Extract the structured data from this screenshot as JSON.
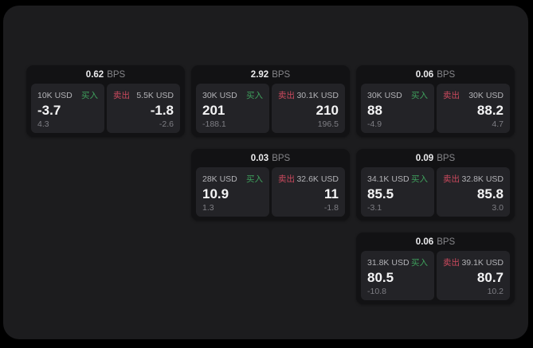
{
  "app": {
    "name": "fx-spread-quote-board"
  },
  "labels": {
    "buy": "买入",
    "sell": "卖出",
    "bps": "BPS"
  },
  "colors": {
    "page_bg": "#000000",
    "panel_bg": "#1c1c1e",
    "card_bg": "#121214",
    "tile_bg": "#232327",
    "buy_green": "#3fa15d",
    "sell_red": "#cc4a5e",
    "price_white": "#f4f4f5",
    "muted_gray": "#7e7e84"
  },
  "cards": [
    {
      "row": 1,
      "col": 1,
      "bps": "0.62",
      "buy": {
        "amount": "10K USD",
        "price": "-3.7",
        "sub": "4.3"
      },
      "sell": {
        "amount": "5.5K USD",
        "price": "-1.8",
        "sub": "-2.6"
      }
    },
    {
      "row": 1,
      "col": 2,
      "bps": "2.92",
      "buy": {
        "amount": "30K USD",
        "price": "201",
        "sub": "-188.1"
      },
      "sell": {
        "amount": "30.1K USD",
        "price": "210",
        "sub": "196.5"
      }
    },
    {
      "row": 1,
      "col": 3,
      "bps": "0.06",
      "buy": {
        "amount": "30K USD",
        "price": "88",
        "sub": "-4.9"
      },
      "sell": {
        "amount": "30K USD",
        "price": "88.2",
        "sub": "4.7"
      }
    },
    {
      "row": 2,
      "col": 2,
      "bps": "0.03",
      "buy": {
        "amount": "28K USD",
        "price": "10.9",
        "sub": "1.3"
      },
      "sell": {
        "amount": "32.6K USD",
        "price": "11",
        "sub": "-1.8"
      }
    },
    {
      "row": 2,
      "col": 3,
      "bps": "0.09",
      "buy": {
        "amount": "34.1K USD",
        "price": "85.5",
        "sub": "-3.1"
      },
      "sell": {
        "amount": "32.8K USD",
        "price": "85.8",
        "sub": "3.0"
      }
    },
    {
      "row": 3,
      "col": 3,
      "bps": "0.06",
      "buy": {
        "amount": "31.8K USD",
        "price": "80.5",
        "sub": "-10.8"
      },
      "sell": {
        "amount": "39.1K USD",
        "price": "80.7",
        "sub": "10.2"
      }
    }
  ]
}
